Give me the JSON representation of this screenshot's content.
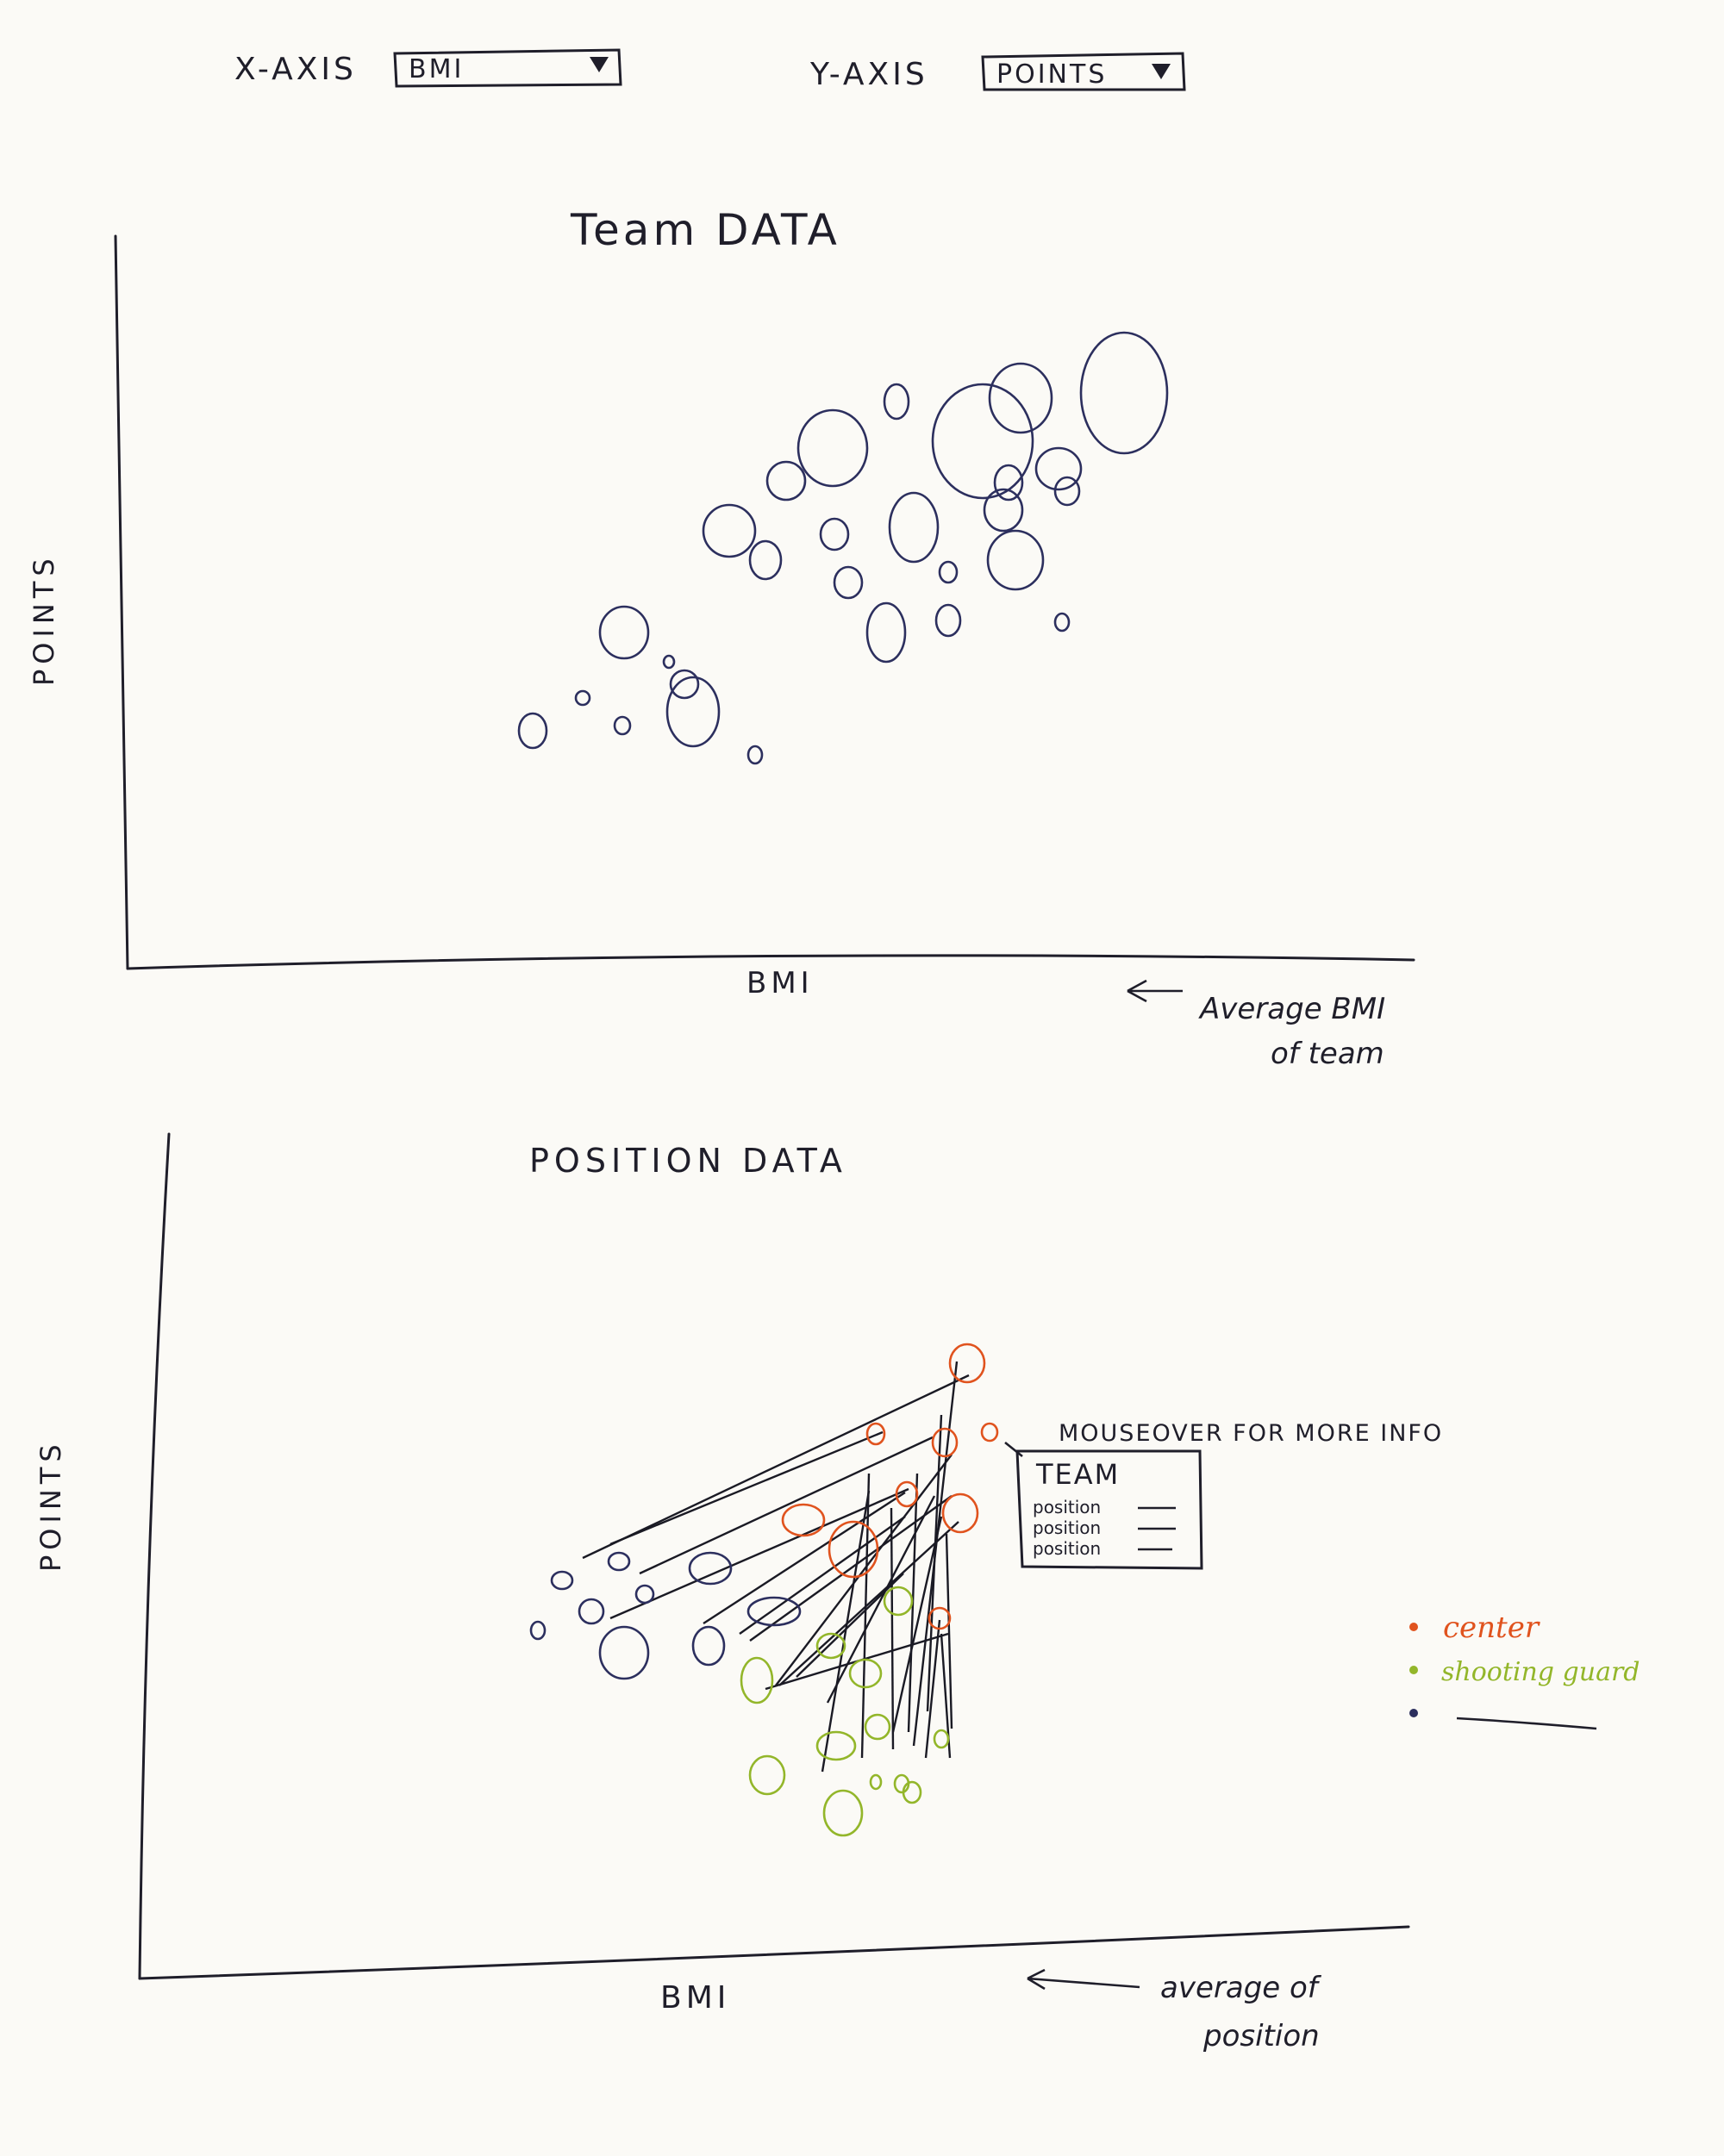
{
  "controls": {
    "x_axis_label": "X-AXIS",
    "x_axis_value": "BMI",
    "y_axis_label": "Y-AXIS",
    "y_axis_value": "POINTS",
    "dropdown_arrow_icon": "triangle-down"
  },
  "team_chart": {
    "title": "Team DATA",
    "ylabel": "POINTS",
    "xlabel": "BMI",
    "annotation_line1": "Average BMI",
    "annotation_line2": "of team",
    "mark_color": "#2c2f5e"
  },
  "position_chart": {
    "title": "POSITION DATA",
    "ylabel": "POINTS",
    "xlabel": "BMI",
    "annotation_line1": "average of",
    "annotation_line2": "position",
    "mouseover_note": "MOUSEOVER FOR MORE INFO",
    "tooltip": {
      "title": "TEAM",
      "rows": [
        "position",
        "position",
        "position"
      ]
    },
    "legend": [
      {
        "label": "center",
        "color": "#e0531e"
      },
      {
        "label": "shooting guard",
        "color": "#93b62a"
      },
      {
        "label": "",
        "color": "#2c2f5e"
      }
    ]
  }
}
